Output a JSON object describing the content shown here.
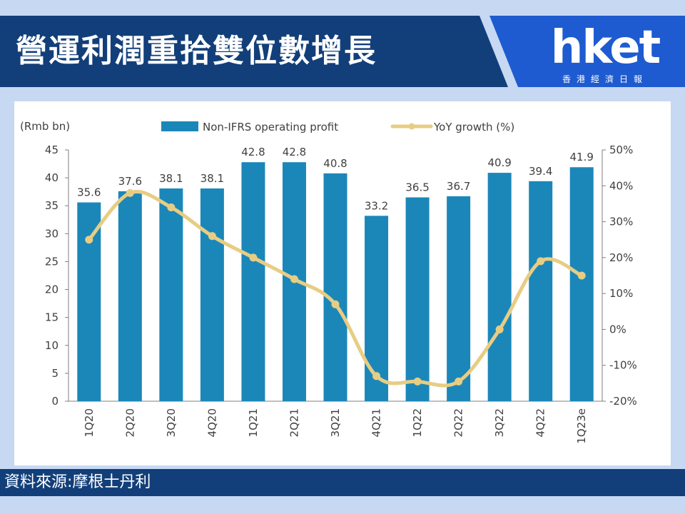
{
  "header": {
    "title": "營運利潤重拾雙位數增長",
    "logo_text": "hket",
    "logo_subtitle": "香港經濟日報"
  },
  "footer": {
    "source": "資料來源:摩根士丹利"
  },
  "colors": {
    "bar": "#1b87b9",
    "line": "#e7cd83",
    "title_bar": "#123f7a",
    "footer_bar": "#123f7a"
  },
  "chart_data": {
    "type": "bar",
    "title": "",
    "ylabel": "(Rmb bn)",
    "categories": [
      "1Q20",
      "2Q20",
      "3Q20",
      "4Q20",
      "1Q21",
      "2Q21",
      "3Q21",
      "4Q21",
      "1Q22",
      "2Q22",
      "3Q22",
      "4Q22",
      "1Q23e"
    ],
    "series": [
      {
        "name": "Non-IFRS operating profit",
        "type": "bar",
        "axis": "left",
        "values": [
          35.6,
          37.6,
          38.1,
          38.1,
          42.8,
          42.8,
          40.8,
          33.2,
          36.5,
          36.7,
          40.9,
          39.4,
          41.9
        ]
      },
      {
        "name": "YoY growth (%)",
        "type": "line",
        "axis": "right",
        "values": [
          25,
          38,
          34,
          26,
          20,
          14,
          7,
          -13,
          -14.5,
          -14.5,
          0,
          19,
          15
        ]
      }
    ],
    "ylim": [
      0,
      45
    ],
    "y_ticks": [
      "0",
      "5",
      "10",
      "15",
      "20",
      "25",
      "30",
      "35",
      "40",
      "45"
    ],
    "y2lim": [
      -20,
      50
    ],
    "y2_ticks": [
      "-20%",
      "-10%",
      "0%",
      "10%",
      "20%",
      "30%",
      "40%",
      "50%"
    ],
    "legend_position": "top",
    "grid": false
  }
}
